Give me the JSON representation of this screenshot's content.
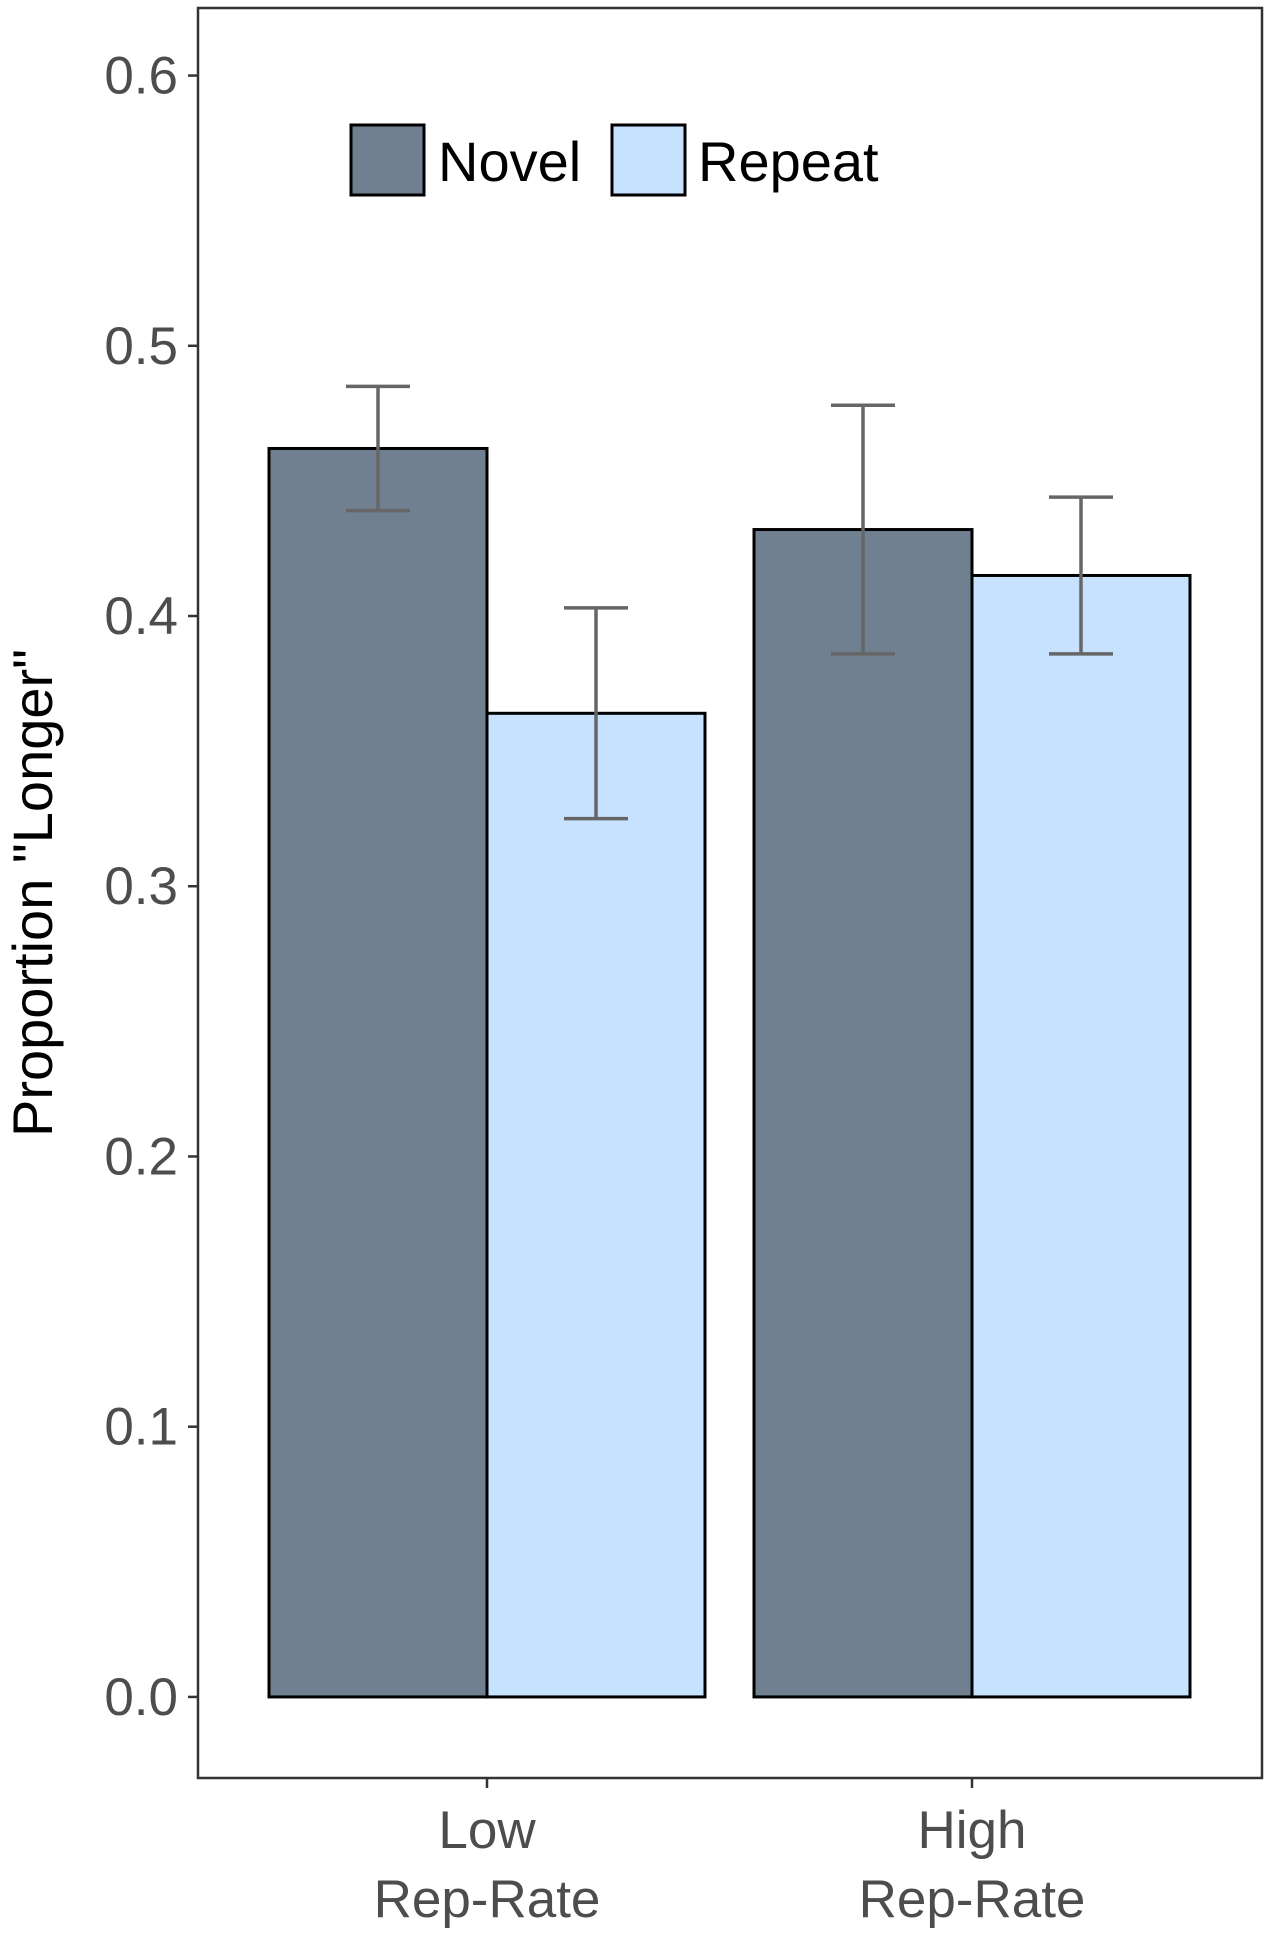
{
  "chart_data": {
    "type": "bar",
    "title": "",
    "xlabel": "",
    "ylabel": "Proportion \"Longer\"",
    "ylim": [
      -0.03,
      0.625
    ],
    "yticks": [
      "0.0",
      "0.1",
      "0.2",
      "0.3",
      "0.4",
      "0.5",
      "0.6"
    ],
    "yticks_values": [
      0.0,
      0.1,
      0.2,
      0.3,
      0.4,
      0.5,
      0.6
    ],
    "categories": [
      {
        "line1": "Low",
        "line2": "Rep-Rate"
      },
      {
        "line1": "High",
        "line2": "Rep-Rate"
      }
    ],
    "series": [
      {
        "name": "Novel",
        "color": "#708090",
        "values": [
          0.462,
          0.432
        ],
        "error_low": [
          0.439,
          0.386
        ],
        "error_high": [
          0.485,
          0.478
        ]
      },
      {
        "name": "Repeat",
        "color": "#c6e2ff",
        "values": [
          0.364,
          0.415
        ],
        "error_low": [
          0.325,
          0.386
        ],
        "error_high": [
          0.403,
          0.444
        ]
      }
    ],
    "grid": false,
    "legend_position": "top-left"
  }
}
